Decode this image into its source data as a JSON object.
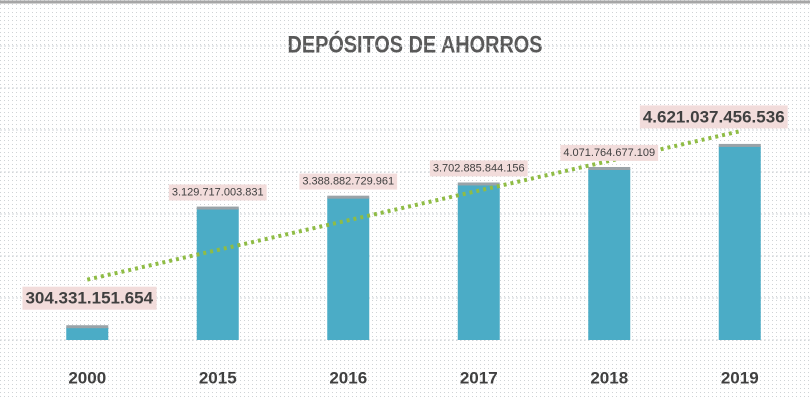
{
  "chart_data": {
    "type": "bar",
    "title": "DEPÓSITOS DE AHORROS",
    "categories": [
      "2000",
      "2015",
      "2016",
      "2017",
      "2018",
      "2019"
    ],
    "values": [
      304331151654,
      3129717003831,
      3388882729961,
      3702885844156,
      4071764677109,
      4621037456536
    ],
    "value_labels": [
      "304.331.151.654",
      "3.129.717.003.831",
      "3.388.882.729.961",
      "3.702.885.844.156",
      "4.071.764.677.109",
      "4.621.037.456.536"
    ],
    "color": "#4bacc6",
    "label_box_color": "#f2dcdb",
    "ylim": [
      0,
      7000000000000
    ],
    "yticks": [
      0,
      1000000000000,
      2000000000000,
      3000000000000,
      4000000000000,
      5000000000000,
      6000000000000,
      7000000000000
    ],
    "grid": true,
    "trendline": true,
    "trendline_color": "#8fbc45"
  }
}
